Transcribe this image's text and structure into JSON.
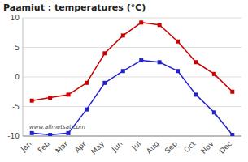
{
  "chart_data": {
    "type": "line",
    "title": "Paamiut : temperatures (°C)",
    "categories": [
      "Jan",
      "Feb",
      "Mar",
      "Apr",
      "May",
      "Jun",
      "Jul",
      "Aug",
      "Sep",
      "Oct",
      "Nov",
      "Dec"
    ],
    "series": [
      {
        "color": "#cc0000",
        "marker": "square",
        "values": [
          -4,
          -3.5,
          -3,
          -1,
          4,
          7,
          9.2,
          8.8,
          6,
          2.5,
          0.5,
          -2.5
        ]
      },
      {
        "color": "#2222cc",
        "marker": "square",
        "values": [
          -9.5,
          -9.8,
          -9.5,
          -5.5,
          -1,
          1,
          2.8,
          2.5,
          1,
          -3,
          -6,
          -9.8
        ]
      }
    ],
    "ylim": [
      -10,
      10
    ],
    "yticks": [
      -10,
      -5,
      0,
      5,
      10
    ],
    "grid": true,
    "annotations": [
      "www.allmetsat.com"
    ]
  }
}
